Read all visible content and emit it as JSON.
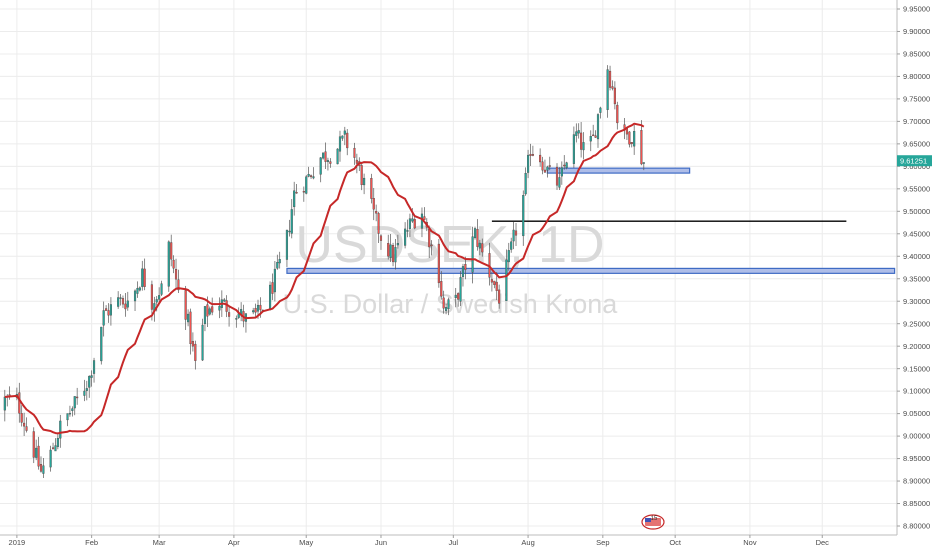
{
  "chart_data": {
    "type": "candlestick",
    "watermark": {
      "symbol": "USDSEK, 1D",
      "description": "U.S. Dollar / Swedish Krona"
    },
    "last_price": "9.61251",
    "last_price_color": "#26a69a",
    "event_badge": "15",
    "colors": {
      "up": "#26a69a",
      "down": "#ef5350",
      "ma": "#c62828",
      "zone": "#3f6bc4",
      "zone_fill": "#aebde8",
      "hline": "#000000",
      "grid": "#ececec"
    },
    "ylim": [
      8.78,
      9.97
    ],
    "y_ticks": [
      "9.95000",
      "9.90000",
      "9.85000",
      "9.80000",
      "9.75000",
      "9.70000",
      "9.65000",
      "9.60000",
      "9.55000",
      "9.50000",
      "9.45000",
      "9.40000",
      "9.35000",
      "9.30000",
      "9.25000",
      "9.20000",
      "9.15000",
      "9.10000",
      "9.05000",
      "9.00000",
      "8.95000",
      "8.90000",
      "8.85000",
      "8.80000"
    ],
    "x_ticks": [
      {
        "label": "2019",
        "day": 0
      },
      {
        "label": "Feb",
        "day": 31
      },
      {
        "label": "Mar",
        "day": 59
      },
      {
        "label": "Apr",
        "day": 90
      },
      {
        "label": "May",
        "day": 120
      },
      {
        "label": "Jun",
        "day": 151
      },
      {
        "label": "Jul",
        "day": 181
      },
      {
        "label": "Aug",
        "day": 212
      },
      {
        "label": "Sep",
        "day": 243
      },
      {
        "label": "Oct",
        "day": 273
      },
      {
        "label": "Nov",
        "day": 304
      },
      {
        "label": "Dec",
        "day": 334
      }
    ],
    "x_range_days": [
      -7,
      365
    ],
    "series": [
      {
        "name": "USDSEK",
        "close_anchors": [
          [
            0,
            9.08
          ],
          [
            5,
            9.0
          ],
          [
            10,
            8.92
          ],
          [
            14,
            8.96
          ],
          [
            18,
            9.02
          ],
          [
            24,
            9.07
          ],
          [
            30,
            9.13
          ],
          [
            36,
            9.27
          ],
          [
            42,
            9.3
          ],
          [
            47,
            9.3
          ],
          [
            52,
            9.36
          ],
          [
            56,
            9.3
          ],
          [
            60,
            9.33
          ],
          [
            63,
            9.42
          ],
          [
            67,
            9.32
          ],
          [
            70,
            9.28
          ],
          [
            74,
            9.16
          ],
          [
            78,
            9.27
          ],
          [
            83,
            9.3
          ],
          [
            90,
            9.28
          ],
          [
            95,
            9.26
          ],
          [
            100,
            9.27
          ],
          [
            105,
            9.32
          ],
          [
            109,
            9.38
          ],
          [
            112,
            9.44
          ],
          [
            115,
            9.54
          ],
          [
            120,
            9.57
          ],
          [
            126,
            9.62
          ],
          [
            131,
            9.63
          ],
          [
            136,
            9.66
          ],
          [
            140,
            9.62
          ],
          [
            144,
            9.56
          ],
          [
            148,
            9.49
          ],
          [
            152,
            9.43
          ],
          [
            156,
            9.4
          ],
          [
            160,
            9.44
          ],
          [
            164,
            9.48
          ],
          [
            168,
            9.5
          ],
          [
            172,
            9.42
          ],
          [
            175,
            9.36
          ],
          [
            177,
            9.28
          ],
          [
            182,
            9.3
          ],
          [
            186,
            9.38
          ],
          [
            190,
            9.45
          ],
          [
            194,
            9.39
          ],
          [
            197,
            9.35
          ],
          [
            200,
            9.31
          ],
          [
            203,
            9.37
          ],
          [
            207,
            9.46
          ],
          [
            210,
            9.53
          ],
          [
            213,
            9.64
          ],
          [
            217,
            9.62
          ],
          [
            221,
            9.58
          ],
          [
            225,
            9.56
          ],
          [
            228,
            9.62
          ],
          [
            232,
            9.67
          ],
          [
            236,
            9.63
          ],
          [
            239,
            9.66
          ],
          [
            242,
            9.74
          ],
          [
            245,
            9.82
          ],
          [
            248,
            9.75
          ],
          [
            250,
            9.66
          ],
          [
            253,
            9.67
          ],
          [
            256,
            9.67
          ],
          [
            258,
            9.63
          ],
          [
            260,
            9.61
          ]
        ]
      },
      {
        "name": "moving average",
        "ma_period": 20
      }
    ],
    "zones": [
      {
        "from_day": 112,
        "to_day": 364,
        "low": 9.362,
        "high": 9.373
      },
      {
        "from_day": 220,
        "to_day": 279,
        "low": 9.585,
        "high": 9.596
      }
    ],
    "horizontal_lines": [
      {
        "from_day": 197,
        "to_day": 344,
        "value": 9.478
      }
    ]
  }
}
